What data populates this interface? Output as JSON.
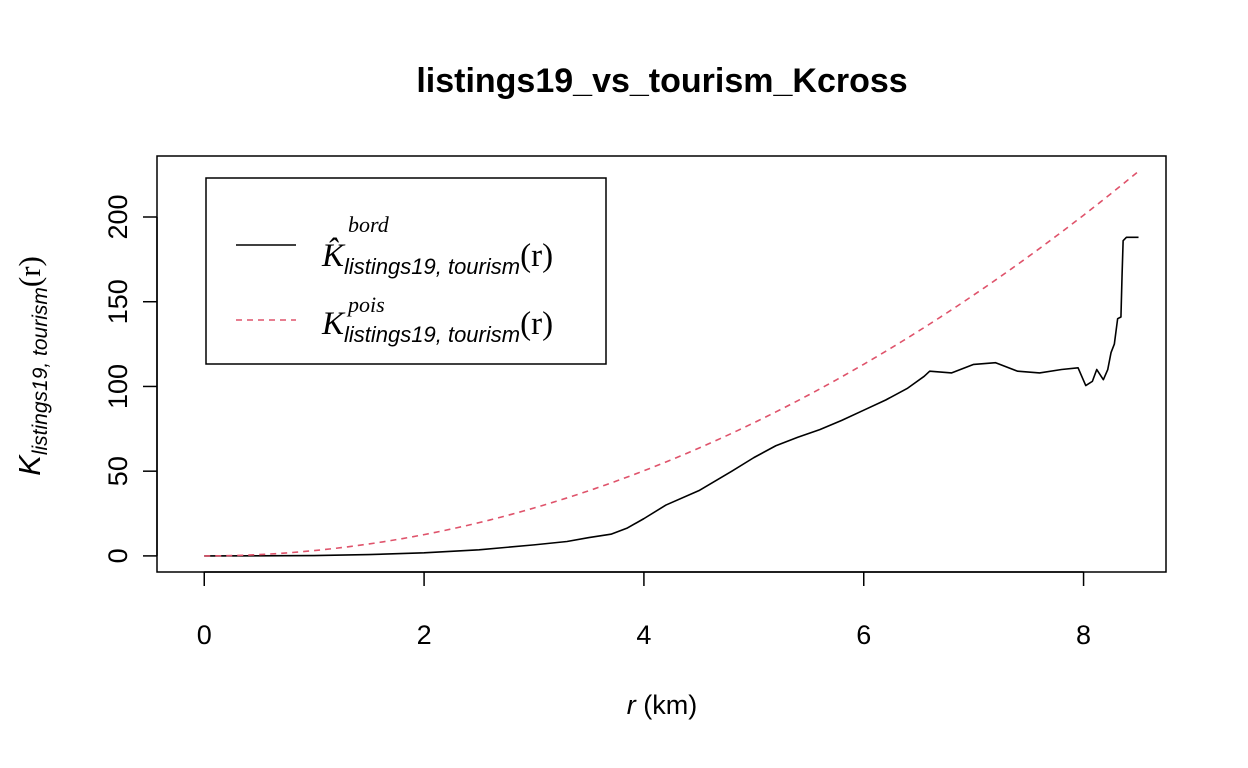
{
  "chart_data": {
    "type": "line",
    "title": "listings19_vs_tourism_Kcross",
    "xlabel": {
      "var": "r",
      "unit": " (km)"
    },
    "ylabel": {
      "symbol": "K",
      "subscript": "listings19, tourism",
      "arg": "(r)"
    },
    "xlim": [
      -0.43,
      8.75
    ],
    "ylim": [
      -9.5,
      236
    ],
    "x_ticks": [
      0,
      2,
      4,
      6,
      8
    ],
    "x_tick_labels": [
      "0",
      "2",
      "4",
      "6",
      "8"
    ],
    "y_ticks": [
      0,
      50,
      100,
      150,
      200
    ],
    "y_tick_labels": [
      "0",
      "50",
      "100",
      "150",
      "200"
    ],
    "grid": false,
    "legend_position": "top-left",
    "series": [
      {
        "key": "bord",
        "legend": {
          "symbol": "K̂",
          "superscript": "bord",
          "subscript": "listings19, tourism",
          "arg": "(r)"
        },
        "color": "#000000",
        "dash": "solid",
        "points": [
          [
            0,
            0
          ],
          [
            0.5,
            0.05
          ],
          [
            1.0,
            0.2
          ],
          [
            1.5,
            0.8
          ],
          [
            2.0,
            1.8
          ],
          [
            2.5,
            3.6
          ],
          [
            3.0,
            6.5
          ],
          [
            3.3,
            8.5
          ],
          [
            3.5,
            10.8
          ],
          [
            3.7,
            12.8
          ],
          [
            3.85,
            16.5
          ],
          [
            4.0,
            22
          ],
          [
            4.2,
            30
          ],
          [
            4.5,
            38.5
          ],
          [
            4.8,
            50
          ],
          [
            5.0,
            58
          ],
          [
            5.2,
            65
          ],
          [
            5.4,
            70
          ],
          [
            5.6,
            74.5
          ],
          [
            5.8,
            80
          ],
          [
            6.0,
            86
          ],
          [
            6.2,
            92
          ],
          [
            6.4,
            99
          ],
          [
            6.55,
            106
          ],
          [
            6.6,
            109
          ],
          [
            6.8,
            108
          ],
          [
            7.0,
            113
          ],
          [
            7.2,
            114
          ],
          [
            7.4,
            109
          ],
          [
            7.6,
            108
          ],
          [
            7.8,
            110
          ],
          [
            7.95,
            111
          ],
          [
            8.02,
            100.5
          ],
          [
            8.08,
            103
          ],
          [
            8.12,
            110
          ],
          [
            8.18,
            104
          ],
          [
            8.22,
            110
          ],
          [
            8.25,
            120
          ],
          [
            8.28,
            125
          ],
          [
            8.31,
            140
          ],
          [
            8.34,
            141
          ],
          [
            8.35,
            165
          ],
          [
            8.36,
            186
          ],
          [
            8.39,
            188
          ],
          [
            8.5,
            188
          ]
        ]
      },
      {
        "key": "pois",
        "legend": {
          "symbol": "K",
          "superscript": "pois",
          "subscript": "listings19, tourism",
          "arg": "(r)"
        },
        "color": "#DF536B",
        "dash": "dashed",
        "formula": "pi*r^2"
      }
    ]
  }
}
